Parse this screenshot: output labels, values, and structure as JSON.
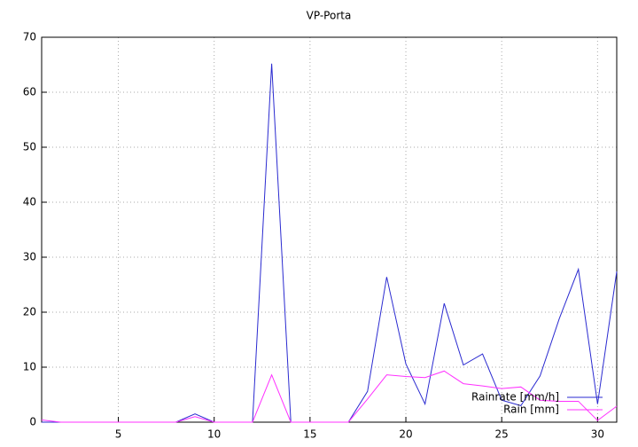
{
  "chart_data": {
    "type": "line",
    "title": "VP-Porta",
    "x": [
      1,
      2,
      3,
      4,
      5,
      6,
      7,
      8,
      9,
      10,
      11,
      12,
      13,
      14,
      15,
      16,
      17,
      18,
      19,
      20,
      21,
      22,
      23,
      24,
      25,
      26,
      27,
      28,
      29,
      30,
      31
    ],
    "series": [
      {
        "name": "Rainrate [mm/h]",
        "color": "#2a2ad0",
        "values": [
          0,
          0,
          0,
          0,
          0,
          0,
          0,
          0,
          1.5,
          0,
          0,
          0,
          65.2,
          0,
          0,
          0,
          0,
          5.6,
          26.4,
          10.6,
          3.3,
          21.6,
          10.4,
          12.4,
          4.0,
          3.0,
          8.4,
          18.8,
          27.8,
          3.3,
          27.4
        ]
      },
      {
        "name": "Rain [mm]",
        "color": "#ff30ff",
        "values": [
          0.4,
          0,
          0,
          0,
          0,
          0,
          0,
          0,
          1.0,
          0,
          0,
          0,
          8.6,
          0,
          0,
          0,
          0,
          4.2,
          8.6,
          8.3,
          8.1,
          9.3,
          7.0,
          6.6,
          6.1,
          6.4,
          4.0,
          3.8,
          3.8,
          0.3,
          2.9
        ]
      }
    ],
    "xlim": [
      1,
      31
    ],
    "ylim": [
      0,
      70
    ],
    "xticks": [
      5,
      10,
      15,
      20,
      25,
      30
    ],
    "yticks": [
      0,
      10,
      20,
      30,
      40,
      50,
      60,
      70
    ],
    "grid": true,
    "legend": "bottom-right"
  }
}
